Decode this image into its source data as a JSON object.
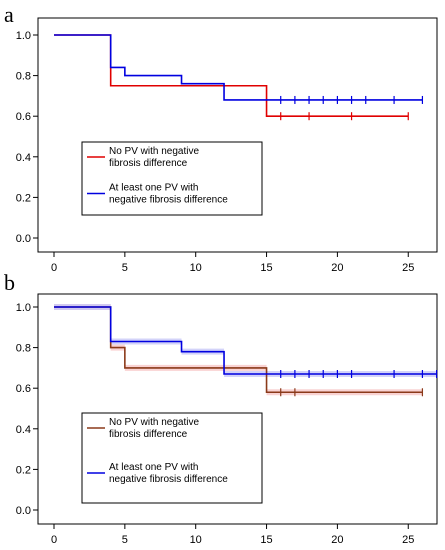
{
  "colors": {
    "red": "#e00000",
    "blue": "#0000e0",
    "brown": "#8b3a1a",
    "pink_shade": "#f7c8c8",
    "blue_shade": "#c8c8f7"
  },
  "chart_data": [
    {
      "panel": "a",
      "type": "line",
      "style": "step",
      "xlim": [
        0,
        26
      ],
      "ylim": [
        0,
        1.0
      ],
      "xticks": [
        0,
        5,
        10,
        15,
        20,
        25
      ],
      "yticks": [
        0.0,
        0.2,
        0.4,
        0.6,
        0.8,
        1.0
      ],
      "xtick_labels": [
        "0",
        "5",
        "10",
        "15",
        "20",
        "25"
      ],
      "ytick_labels": [
        "0.0",
        "0.2",
        "0.4",
        "0.6",
        "0.8",
        "1.0"
      ],
      "legend": {
        "placement": "center-left",
        "entries": [
          {
            "lines": [
              "No PV with negative",
              "fibrosis difference"
            ],
            "color": "#e00000"
          },
          {
            "lines": [
              "At least one PV with",
              "negative fibrosis difference"
            ],
            "color": "#0000e0"
          }
        ]
      },
      "series": [
        {
          "color": "#e00000",
          "x": [
            0,
            4,
            15,
            25
          ],
          "y": [
            1.0,
            0.75,
            0.6,
            0.6
          ],
          "censored_x": [
            16,
            18,
            21,
            25
          ]
        },
        {
          "color": "#0000e0",
          "x": [
            0,
            4,
            5,
            9,
            12,
            26
          ],
          "y": [
            1.0,
            0.84,
            0.8,
            0.76,
            0.68,
            0.68
          ],
          "censored_x": [
            16,
            17,
            18,
            19,
            20,
            21,
            22,
            24,
            26
          ]
        }
      ]
    },
    {
      "panel": "b",
      "type": "line",
      "style": "step",
      "xlim": [
        0,
        26
      ],
      "ylim": [
        0,
        1.0
      ],
      "xticks": [
        0,
        5,
        10,
        15,
        20,
        25
      ],
      "yticks": [
        0.0,
        0.2,
        0.4,
        0.6,
        0.8,
        1.0
      ],
      "xtick_labels": [
        "0",
        "5",
        "10",
        "15",
        "20",
        "25"
      ],
      "ytick_labels": [
        "0.0",
        "0.2",
        "0.4",
        "0.6",
        "0.8",
        "1.0"
      ],
      "legend": {
        "placement": "center-left",
        "entries": [
          {
            "lines": [
              "No PV with negative",
              "fibrosis difference"
            ],
            "color": "#8b3a1a"
          },
          {
            "lines": [
              "At least one PV with",
              "negative fibrosis difference"
            ],
            "color": "#0000e0"
          }
        ]
      },
      "series": [
        {
          "color": "#8b3a1a",
          "shade": "#f7c8c8",
          "x": [
            0,
            4,
            5,
            15,
            26
          ],
          "y": [
            1.0,
            0.8,
            0.7,
            0.58,
            0.58
          ],
          "censored_x": [
            16,
            17,
            26
          ]
        },
        {
          "color": "#0000e0",
          "shade": "#c8c8f7",
          "x": [
            0,
            4,
            9,
            12,
            27
          ],
          "y": [
            1.0,
            0.83,
            0.78,
            0.67,
            0.67
          ],
          "censored_x": [
            16,
            17,
            18,
            19,
            20,
            21,
            24,
            26,
            27
          ]
        }
      ]
    }
  ]
}
